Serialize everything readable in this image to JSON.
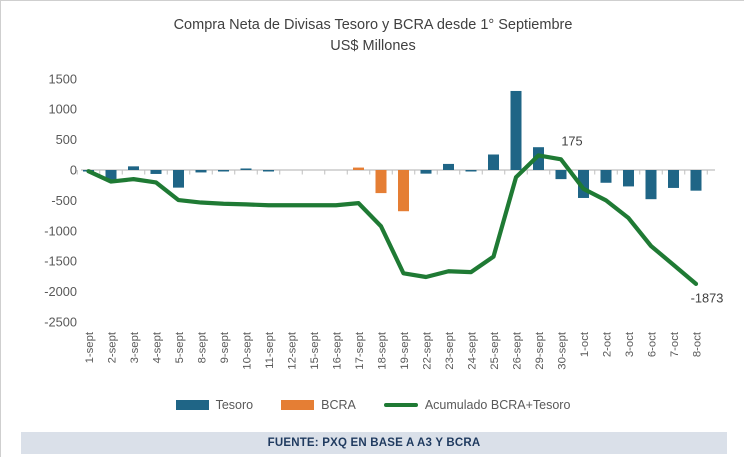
{
  "title": {
    "line1": "Compra Neta de Divisas Tesoro y BCRA desde 1° Septiembre",
    "line2": "US$ Millones"
  },
  "chart_data": {
    "type": "bar",
    "subtype": "combo-bar-line",
    "title": "Compra Neta de Divisas Tesoro y BCRA desde 1° Septiembre",
    "subtitle": "US$ Millones",
    "xlabel": "",
    "ylabel": "",
    "ylim": [
      -2500,
      1500
    ],
    "yticks": [
      1500,
      1000,
      500,
      0,
      -500,
      -1000,
      -1500,
      -2000,
      -2500
    ],
    "grid": false,
    "legend_position": "bottom",
    "categories": [
      "1-sept",
      "2-sept",
      "3-sept",
      "4-sept",
      "5-sept",
      "8-sept",
      "9-sept",
      "10-sept",
      "11-sept",
      "12-sept",
      "15-sept",
      "16-sept",
      "17-sept",
      "18-sept",
      "19-sept",
      "22-sept",
      "23-sept",
      "24-sept",
      "25-sept",
      "26-sept",
      "29-sept",
      "30-sept",
      "1-oct",
      "2-oct",
      "3-oct",
      "6-oct",
      "7-oct",
      "8-oct"
    ],
    "series": [
      {
        "name": "Tesoro",
        "type": "bar",
        "color": "#1F6586",
        "values": [
          -20,
          -175,
          60,
          -65,
          -290,
          -40,
          -20,
          25,
          -20,
          null,
          null,
          null,
          null,
          null,
          null,
          -60,
          100,
          -15,
          255,
          1300,
          375,
          -150,
          -460,
          -210,
          -270,
          -480,
          -295,
          -340
        ]
      },
      {
        "name": "BCRA",
        "type": "bar",
        "color": "#E57E34",
        "values": [
          null,
          null,
          null,
          null,
          null,
          null,
          null,
          null,
          null,
          null,
          null,
          null,
          40,
          -380,
          -678,
          null,
          null,
          null,
          null,
          null,
          null,
          null,
          null,
          null,
          null,
          null,
          null,
          null
        ]
      },
      {
        "name": "Acumulado BCRA+Tesoro",
        "type": "line",
        "color": "#1F7A34",
        "values": [
          -20,
          -190,
          -150,
          -205,
          -495,
          -535,
          -555,
          -565,
          -580,
          -580,
          -580,
          -580,
          -545,
          -925,
          -1700,
          -1760,
          -1665,
          -1680,
          -1425,
          -120,
          240,
          175,
          -310,
          -500,
          -790,
          -1250,
          -1560,
          -1873
        ]
      }
    ],
    "annotations": [
      {
        "text": "175",
        "category": "30-sept",
        "series": "Acumulado BCRA+Tesoro",
        "position": "above-right"
      },
      {
        "text": "-1873",
        "category": "8-oct",
        "series": "Acumulado BCRA+Tesoro",
        "position": "below-right"
      }
    ]
  },
  "legend": {
    "tesoro_label": "Tesoro",
    "bcra_label": "BCRA",
    "acumulado_label": "Acumulado BCRA+Tesoro"
  },
  "footer": {
    "text": "FUENTE: PXQ EN BASE A A3 Y BCRA"
  },
  "colors": {
    "tesoro": "#1F6586",
    "bcra": "#E57E34",
    "acumulado": "#1F7A34",
    "axis": "#bfbfbf",
    "footer_bg": "#dae0e9",
    "footer_text": "#1f3a5f"
  }
}
